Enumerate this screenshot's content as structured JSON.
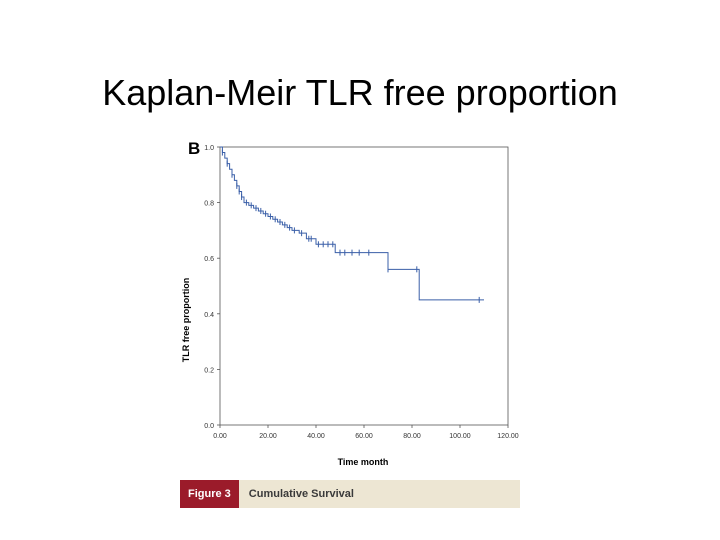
{
  "slide": {
    "title": "Kaplan-Meir TLR free proportion"
  },
  "figure": {
    "panel_letter": "B",
    "caption_tag": "Figure 3",
    "caption_text": "Cumulative Survival"
  },
  "colors": {
    "line": "#3a5fa8",
    "caption_tag_bg": "#9b1b2a",
    "caption_bg": "#ede6d3"
  },
  "chart_data": {
    "type": "line",
    "title": "",
    "xlabel": "Time month",
    "ylabel": "TLR free proportion",
    "xlim": [
      0,
      120
    ],
    "ylim": [
      0,
      1
    ],
    "xticks": [
      "0.00",
      "20.00",
      "40.00",
      "60.00",
      "80.00",
      "100.00",
      "120.00"
    ],
    "yticks": [
      "0.0",
      "0.2",
      "0.4",
      "0.6",
      "0.8",
      "1.0"
    ],
    "grid": false,
    "step": true,
    "series": [
      {
        "x": [
          0,
          1,
          2,
          3,
          4,
          5,
          6,
          7,
          8,
          9,
          10,
          12,
          14,
          16,
          18,
          20,
          22,
          24,
          26,
          28,
          30,
          33,
          36,
          40,
          48,
          70,
          83,
          110
        ],
        "y": [
          1.0,
          0.98,
          0.96,
          0.94,
          0.92,
          0.9,
          0.88,
          0.86,
          0.84,
          0.82,
          0.8,
          0.79,
          0.78,
          0.77,
          0.76,
          0.75,
          0.74,
          0.73,
          0.72,
          0.71,
          0.7,
          0.69,
          0.67,
          0.65,
          0.62,
          0.56,
          0.45,
          0.45
        ]
      }
    ],
    "censor_x": [
      1,
      3,
      5,
      7,
      8,
      9,
      11,
      13,
      15,
      17,
      19,
      21,
      23,
      25,
      27,
      29,
      31,
      34,
      37,
      38,
      41,
      43,
      45,
      47,
      50,
      52,
      55,
      58,
      62,
      70,
      82,
      108
    ]
  }
}
